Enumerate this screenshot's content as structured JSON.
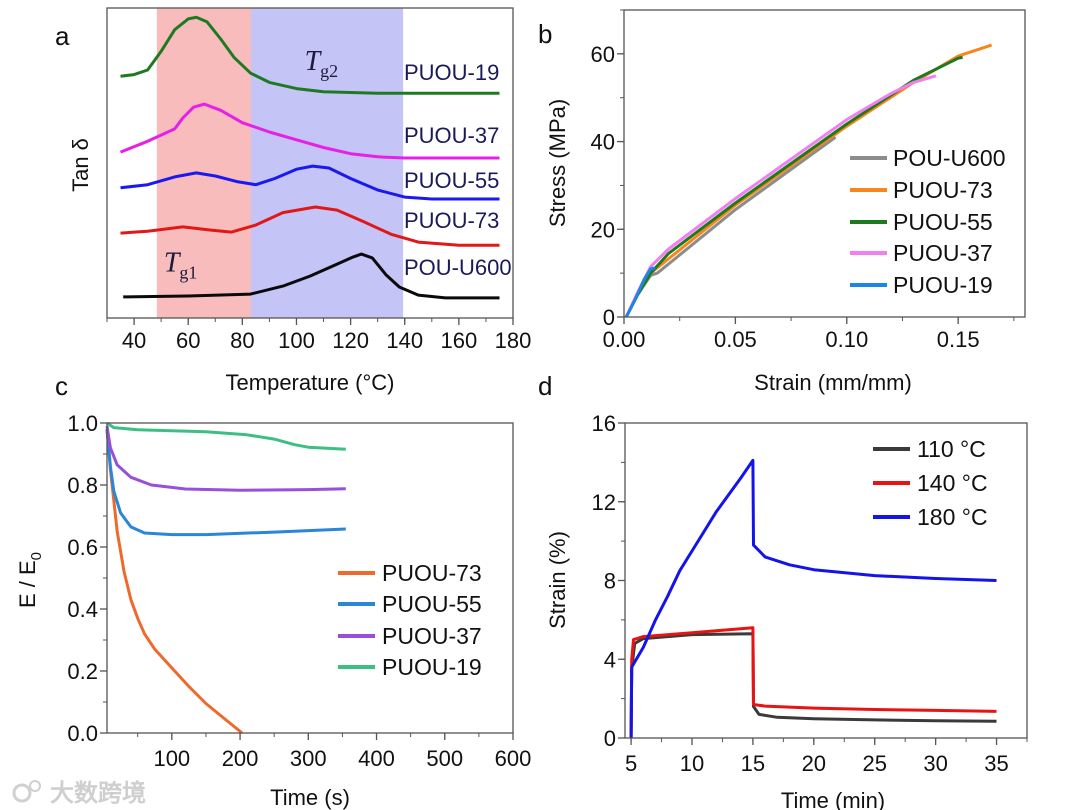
{
  "watermark": "大数跨境",
  "chart_data": [
    {
      "panel": "a",
      "type": "line",
      "xlabel": "Temperature (°C)",
      "ylabel": "Tan δ",
      "xlim": [
        30,
        180
      ],
      "ylim": [
        0,
        100
      ],
      "xticks": [
        {
          "v": 40,
          "label": "40"
        },
        {
          "v": 60,
          "label": "60"
        },
        {
          "v": 80,
          "label": "80"
        },
        {
          "v": 100,
          "label": "100"
        },
        {
          "v": 120,
          "label": "120"
        },
        {
          "v": 140,
          "label": "140"
        },
        {
          "v": 160,
          "label": "160"
        },
        {
          "v": 180,
          "label": "180"
        }
      ],
      "xminor": 10,
      "yticks": [],
      "bands": [
        {
          "from": 48.4,
          "to": 83.2,
          "color": "#f9bcbc",
          "label_main": "T",
          "label_sub": "g1",
          "label_at": [
            51,
            15
          ]
        },
        {
          "from": 83.2,
          "to": 139.4,
          "color": "#c4c4f7",
          "label_main": "T",
          "label_sub": "g2",
          "label_at": [
            103,
            80
          ]
        }
      ],
      "series": [
        {
          "name": "PUOU-19",
          "color": "#1e7a22",
          "points": [
            [
              35,
              78
            ],
            [
              40,
              78.5
            ],
            [
              45,
              80
            ],
            [
              50,
              86
            ],
            [
              55,
              93
            ],
            [
              60,
              96.5
            ],
            [
              63,
              97
            ],
            [
              67,
              95.5
            ],
            [
              72,
              90
            ],
            [
              77,
              84
            ],
            [
              83,
              79
            ],
            [
              90,
              76
            ],
            [
              100,
              74
            ],
            [
              110,
              73
            ],
            [
              130,
              72.5
            ],
            [
              175,
              72.5
            ]
          ]
        },
        {
          "name": "PUOU-37",
          "color": "#e620e6",
          "points": [
            [
              35,
              53.5
            ],
            [
              45,
              57
            ],
            [
              50,
              59
            ],
            [
              55,
              61
            ],
            [
              58,
              64.5
            ],
            [
              62,
              68
            ],
            [
              66,
              69
            ],
            [
              72,
              67
            ],
            [
              80,
              63
            ],
            [
              90,
              60
            ],
            [
              100,
              57.5
            ],
            [
              110,
              55
            ],
            [
              120,
              53
            ],
            [
              130,
              52
            ],
            [
              140,
              51.6
            ],
            [
              175,
              51.6
            ]
          ]
        },
        {
          "name": "PUOU-55",
          "color": "#1a1af0",
          "points": [
            [
              35,
              42
            ],
            [
              45,
              43
            ],
            [
              55,
              45.5
            ],
            [
              63,
              46.8
            ],
            [
              70,
              45.8
            ],
            [
              78,
              44
            ],
            [
              85,
              43
            ],
            [
              92,
              45
            ],
            [
              100,
              48
            ],
            [
              106,
              49
            ],
            [
              112,
              48.4
            ],
            [
              120,
              45
            ],
            [
              130,
              41.3
            ],
            [
              140,
              39
            ],
            [
              150,
              38.4
            ],
            [
              175,
              38.4
            ]
          ]
        },
        {
          "name": "PUOU-73",
          "color": "#e01818",
          "points": [
            [
              35,
              27.4
            ],
            [
              45,
              28
            ],
            [
              58,
              29.4
            ],
            [
              68,
              28.4
            ],
            [
              76,
              27.7
            ],
            [
              85,
              30
            ],
            [
              95,
              34
            ],
            [
              107,
              35.8
            ],
            [
              115,
              34.8
            ],
            [
              125,
              31
            ],
            [
              135,
              27
            ],
            [
              145,
              24.5
            ],
            [
              160,
              23.5
            ],
            [
              175,
              23.5
            ]
          ]
        },
        {
          "name": "POU-U600",
          "color": "#0a0a0a",
          "points": [
            [
              36,
              6.8
            ],
            [
              60,
              7.1
            ],
            [
              83,
              7.7
            ],
            [
              95,
              10.3
            ],
            [
              105,
              13.5
            ],
            [
              115,
              17.4
            ],
            [
              121,
              19.7
            ],
            [
              124,
              20.6
            ],
            [
              128,
              19.4
            ],
            [
              133,
              14
            ],
            [
              138,
              10
            ],
            [
              145,
              7.4
            ],
            [
              155,
              6.5
            ],
            [
              175,
              6.5
            ]
          ]
        }
      ],
      "annotations": [
        "PUOU-19",
        "PUOU-37",
        "PUOU-55",
        "PUOU-73",
        "POU-U600"
      ]
    },
    {
      "panel": "b",
      "type": "line",
      "xlabel": "Strain (mm/mm)",
      "ylabel": "Stress (MPa)",
      "xlim": [
        0,
        0.18
      ],
      "ylim": [
        0,
        70
      ],
      "xticks": [
        {
          "v": 0,
          "label": "0.00"
        },
        {
          "v": 0.05,
          "label": "0.05"
        },
        {
          "v": 0.1,
          "label": "0.10"
        },
        {
          "v": 0.15,
          "label": "0.15"
        }
      ],
      "xminor": 0.025,
      "yticks": [
        {
          "v": 0,
          "label": "0"
        },
        {
          "v": 20,
          "label": "20"
        },
        {
          "v": 40,
          "label": "40"
        },
        {
          "v": 60,
          "label": "60"
        }
      ],
      "yminor": 10,
      "legend": "right",
      "series": [
        {
          "name": "POU-U600",
          "color": "#8c8c8c",
          "points": [
            [
              0.001,
              0
            ],
            [
              0.006,
              5
            ],
            [
              0.012,
              9.5
            ],
            [
              0.015,
              10
            ],
            [
              0.05,
              24.5
            ],
            [
              0.095,
              41
            ]
          ]
        },
        {
          "name": "PUOU-73",
          "color": "#f7871c",
          "points": [
            [
              0.001,
              0
            ],
            [
              0.006,
              5
            ],
            [
              0.012,
              10
            ],
            [
              0.05,
              25.5
            ],
            [
              0.1,
              43.5
            ],
            [
              0.13,
              53.5
            ],
            [
              0.15,
              59.5
            ],
            [
              0.165,
              62
            ]
          ]
        },
        {
          "name": "PUOU-55",
          "color": "#1e7a1e",
          "points": [
            [
              0.001,
              0
            ],
            [
              0.006,
              5
            ],
            [
              0.012,
              10
            ],
            [
              0.02,
              14.5
            ],
            [
              0.05,
              26
            ],
            [
              0.1,
              44
            ],
            [
              0.13,
              54
            ],
            [
              0.15,
              59
            ],
            [
              0.152,
              59.2
            ]
          ]
        },
        {
          "name": "PUOU-37",
          "color": "#f07ff0",
          "points": [
            [
              0.001,
              0
            ],
            [
              0.006,
              5.5
            ],
            [
              0.012,
              11.5
            ],
            [
              0.02,
              15.5
            ],
            [
              0.05,
              27
            ],
            [
              0.1,
              45
            ],
            [
              0.12,
              51
            ],
            [
              0.13,
              53.5
            ],
            [
              0.14,
              55
            ]
          ]
        },
        {
          "name": "PUOU-19",
          "color": "#1c86e6",
          "points": [
            [
              0.001,
              0
            ],
            [
              0.005,
              4
            ],
            [
              0.009,
              8.5
            ],
            [
              0.012,
              11
            ],
            [
              0.014,
              11.2
            ]
          ]
        }
      ]
    },
    {
      "panel": "c",
      "type": "line",
      "xlabel": "Time (s)",
      "ylabel": "E / E",
      "ylabel_sub": "0",
      "xlim": [
        5,
        600
      ],
      "ylim": [
        0,
        1
      ],
      "xticks": [
        {
          "v": 100,
          "label": "100"
        },
        {
          "v": 200,
          "label": "200"
        },
        {
          "v": 300,
          "label": "300"
        },
        {
          "v": 400,
          "label": "400"
        },
        {
          "v": 500,
          "label": "500"
        },
        {
          "v": 600,
          "label": "600"
        }
      ],
      "xminor": 50,
      "yticks": [
        {
          "v": 0,
          "label": "0.0"
        },
        {
          "v": 0.2,
          "label": "0.2"
        },
        {
          "v": 0.4,
          "label": "0.4"
        },
        {
          "v": 0.6,
          "label": "0.6"
        },
        {
          "v": 0.8,
          "label": "0.8"
        },
        {
          "v": 1.0,
          "label": "1.0"
        }
      ],
      "yminor": 0.1,
      "legend": "right",
      "series": [
        {
          "name": "PUOU-73",
          "color": "#ee6a2b",
          "points": [
            [
              5,
              0.98
            ],
            [
              10,
              0.85
            ],
            [
              20,
              0.65
            ],
            [
              30,
              0.52
            ],
            [
              40,
              0.43
            ],
            [
              50,
              0.37
            ],
            [
              60,
              0.32
            ],
            [
              75,
              0.27
            ],
            [
              100,
              0.21
            ],
            [
              125,
              0.15
            ],
            [
              150,
              0.095
            ],
            [
              175,
              0.05
            ],
            [
              203,
              0
            ]
          ]
        },
        {
          "name": "PUOU-55",
          "color": "#2a86d8",
          "points": [
            [
              5,
              0.98
            ],
            [
              10,
              0.86
            ],
            [
              15,
              0.78
            ],
            [
              25,
              0.71
            ],
            [
              40,
              0.665
            ],
            [
              60,
              0.645
            ],
            [
              100,
              0.64
            ],
            [
              150,
              0.64
            ],
            [
              250,
              0.648
            ],
            [
              355,
              0.658
            ]
          ]
        },
        {
          "name": "PUOU-37",
          "color": "#9650dc",
          "points": [
            [
              5,
              0.99
            ],
            [
              10,
              0.92
            ],
            [
              20,
              0.865
            ],
            [
              40,
              0.825
            ],
            [
              70,
              0.8
            ],
            [
              120,
              0.787
            ],
            [
              200,
              0.783
            ],
            [
              300,
              0.785
            ],
            [
              355,
              0.788
            ]
          ]
        },
        {
          "name": "PUOU-19",
          "color": "#3cbf84",
          "points": [
            [
              5,
              1.0
            ],
            [
              15,
              0.985
            ],
            [
              50,
              0.978
            ],
            [
              150,
              0.972
            ],
            [
              210,
              0.962
            ],
            [
              250,
              0.948
            ],
            [
              280,
              0.93
            ],
            [
              300,
              0.922
            ],
            [
              355,
              0.915
            ]
          ]
        }
      ]
    },
    {
      "panel": "d",
      "type": "line",
      "xlabel": "Time (min)",
      "ylabel": "Strain (%)",
      "xlim": [
        4.5,
        37.5
      ],
      "ylim": [
        0,
        16
      ],
      "xticks": [
        {
          "v": 5,
          "label": "5"
        },
        {
          "v": 10,
          "label": "10"
        },
        {
          "v": 15,
          "label": "15"
        },
        {
          "v": 20,
          "label": "20"
        },
        {
          "v": 25,
          "label": "25"
        },
        {
          "v": 30,
          "label": "30"
        },
        {
          "v": 35,
          "label": "35"
        }
      ],
      "xminor": 2.5,
      "yticks": [
        {
          "v": 0,
          "label": "0"
        },
        {
          "v": 4,
          "label": "4"
        },
        {
          "v": 8,
          "label": "8"
        },
        {
          "v": 12,
          "label": "12"
        },
        {
          "v": 16,
          "label": "16"
        }
      ],
      "yminor": 2,
      "legend": "top-right",
      "series": [
        {
          "name": "110 °C",
          "color": "#3a3a3a",
          "points": [
            [
              5,
              0
            ],
            [
              5.05,
              3.5
            ],
            [
              5.3,
              4.8
            ],
            [
              6,
              5.05
            ],
            [
              10,
              5.25
            ],
            [
              15,
              5.3
            ],
            [
              15.05,
              1.6
            ],
            [
              15.5,
              1.2
            ],
            [
              17,
              1.05
            ],
            [
              20,
              0.98
            ],
            [
              25,
              0.92
            ],
            [
              30,
              0.88
            ],
            [
              35,
              0.85
            ]
          ]
        },
        {
          "name": "140 °C",
          "color": "#e81414",
          "points": [
            [
              5,
              0
            ],
            [
              5.05,
              4.0
            ],
            [
              5.2,
              5.0
            ],
            [
              6,
              5.15
            ],
            [
              10,
              5.35
            ],
            [
              15,
              5.6
            ],
            [
              15.05,
              1.7
            ],
            [
              16,
              1.62
            ],
            [
              20,
              1.52
            ],
            [
              25,
              1.45
            ],
            [
              30,
              1.4
            ],
            [
              35,
              1.35
            ]
          ]
        },
        {
          "name": "180 °C",
          "color": "#1414e8",
          "points": [
            [
              5,
              0
            ],
            [
              5.05,
              3.6
            ],
            [
              6,
              4.6
            ],
            [
              7,
              6.0
            ],
            [
              8,
              7.2
            ],
            [
              9,
              8.5
            ],
            [
              10,
              9.5
            ],
            [
              12,
              11.5
            ],
            [
              14,
              13.2
            ],
            [
              15,
              14.1
            ],
            [
              15.05,
              9.8
            ],
            [
              16,
              9.2
            ],
            [
              18,
              8.8
            ],
            [
              20,
              8.55
            ],
            [
              25,
              8.25
            ],
            [
              30,
              8.1
            ],
            [
              35,
              8.0
            ]
          ]
        }
      ]
    }
  ]
}
